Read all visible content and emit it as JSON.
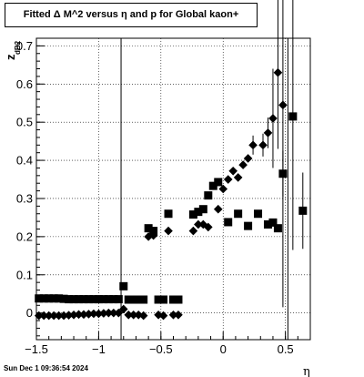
{
  "chart_data": {
    "type": "scatter",
    "title": "Fitted Δ M^2 versus η and p for Global kaon+",
    "xlabel": "η",
    "ylabel": "z",
    "ylabel_sub": "dB2",
    "xlim": [
      -1.5,
      0.7
    ],
    "ylim": [
      -0.07,
      0.72
    ],
    "x_ticks": [
      -1.5,
      -1,
      -0.5,
      0,
      0.5
    ],
    "x_tick_labels": [
      "−1.5",
      "−1",
      "−0.5",
      "0",
      "0.5"
    ],
    "y_ticks": [
      0,
      0.1,
      0.2,
      0.3,
      0.4,
      0.5,
      0.6,
      0.7
    ],
    "y_tick_labels": [
      "0",
      "0.1",
      "0.2",
      "0.3",
      "0.4",
      "0.5",
      "0.6",
      "0.7"
    ],
    "grid": true,
    "vertical_lines_x": [
      -0.82,
      0.52
    ],
    "series": [
      {
        "marker": "square",
        "color": "#000000",
        "points": [
          {
            "x": -1.48,
            "y": 0.038
          },
          {
            "x": -1.44,
            "y": 0.038
          },
          {
            "x": -1.4,
            "y": 0.038
          },
          {
            "x": -1.36,
            "y": 0.038
          },
          {
            "x": -1.32,
            "y": 0.038
          },
          {
            "x": -1.28,
            "y": 0.037
          },
          {
            "x": -1.24,
            "y": 0.036
          },
          {
            "x": -1.2,
            "y": 0.036
          },
          {
            "x": -1.16,
            "y": 0.036
          },
          {
            "x": -1.12,
            "y": 0.036
          },
          {
            "x": -1.08,
            "y": 0.036
          },
          {
            "x": -1.04,
            "y": 0.036
          },
          {
            "x": -1.0,
            "y": 0.036
          },
          {
            "x": -0.96,
            "y": 0.036
          },
          {
            "x": -0.92,
            "y": 0.036
          },
          {
            "x": -0.88,
            "y": 0.036
          },
          {
            "x": -0.84,
            "y": 0.036
          },
          {
            "x": -0.8,
            "y": 0.07
          },
          {
            "x": -0.76,
            "y": 0.035
          },
          {
            "x": -0.72,
            "y": 0.035
          },
          {
            "x": -0.68,
            "y": 0.035
          },
          {
            "x": -0.64,
            "y": 0.035
          },
          {
            "x": -0.6,
            "y": 0.222
          },
          {
            "x": -0.56,
            "y": 0.215
          },
          {
            "x": -0.52,
            "y": 0.035
          },
          {
            "x": -0.48,
            "y": 0.035
          },
          {
            "x": -0.44,
            "y": 0.26
          },
          {
            "x": -0.4,
            "y": 0.035
          },
          {
            "x": -0.36,
            "y": 0.035
          },
          {
            "x": -0.24,
            "y": 0.258
          },
          {
            "x": -0.2,
            "y": 0.265
          },
          {
            "x": -0.16,
            "y": 0.272
          },
          {
            "x": -0.12,
            "y": 0.308
          },
          {
            "x": -0.08,
            "y": 0.333
          },
          {
            "x": -0.04,
            "y": 0.343
          },
          {
            "x": 0.04,
            "y": 0.238
          },
          {
            "x": 0.12,
            "y": 0.26
          },
          {
            "x": 0.2,
            "y": 0.228
          },
          {
            "x": 0.28,
            "y": 0.26
          },
          {
            "x": 0.36,
            "y": 0.232
          },
          {
            "x": 0.4,
            "y": 0.237
          },
          {
            "x": 0.44,
            "y": 0.222
          },
          {
            "x": 0.48,
            "y": 0.365,
            "err": 0.06
          },
          {
            "x": 0.56,
            "y": 0.515,
            "err": 0.35
          },
          {
            "x": 0.64,
            "y": 0.268,
            "err": 0.1
          }
        ]
      },
      {
        "marker": "diamond",
        "color": "#000000",
        "points": [
          {
            "x": -1.48,
            "y": -0.007
          },
          {
            "x": -1.44,
            "y": -0.007
          },
          {
            "x": -1.4,
            "y": -0.007
          },
          {
            "x": -1.36,
            "y": -0.007
          },
          {
            "x": -1.32,
            "y": -0.007
          },
          {
            "x": -1.28,
            "y": -0.007
          },
          {
            "x": -1.24,
            "y": -0.006
          },
          {
            "x": -1.2,
            "y": -0.005
          },
          {
            "x": -1.16,
            "y": -0.004
          },
          {
            "x": -1.12,
            "y": -0.004
          },
          {
            "x": -1.08,
            "y": -0.003
          },
          {
            "x": -1.04,
            "y": -0.002
          },
          {
            "x": -1.0,
            "y": -0.002
          },
          {
            "x": -0.96,
            "y": -0.001
          },
          {
            "x": -0.92,
            "y": 0.0
          },
          {
            "x": -0.88,
            "y": 0.0
          },
          {
            "x": -0.84,
            "y": 0.0
          },
          {
            "x": -0.8,
            "y": 0.01
          },
          {
            "x": -0.76,
            "y": -0.005
          },
          {
            "x": -0.72,
            "y": -0.005
          },
          {
            "x": -0.68,
            "y": -0.005
          },
          {
            "x": -0.64,
            "y": -0.007
          },
          {
            "x": -0.6,
            "y": 0.2
          },
          {
            "x": -0.56,
            "y": 0.203
          },
          {
            "x": -0.52,
            "y": -0.005
          },
          {
            "x": -0.48,
            "y": -0.007
          },
          {
            "x": -0.44,
            "y": 0.215
          },
          {
            "x": -0.4,
            "y": -0.005
          },
          {
            "x": -0.36,
            "y": -0.005
          },
          {
            "x": -0.24,
            "y": 0.215
          },
          {
            "x": -0.2,
            "y": 0.232
          },
          {
            "x": -0.16,
            "y": 0.232
          },
          {
            "x": -0.12,
            "y": 0.225
          },
          {
            "x": -0.04,
            "y": 0.272
          },
          {
            "x": 0.0,
            "y": 0.325
          },
          {
            "x": 0.04,
            "y": 0.35
          },
          {
            "x": 0.08,
            "y": 0.372
          },
          {
            "x": 0.12,
            "y": 0.355
          },
          {
            "x": 0.16,
            "y": 0.388
          },
          {
            "x": 0.2,
            "y": 0.405
          },
          {
            "x": 0.24,
            "y": 0.44,
            "err": 0.025
          },
          {
            "x": 0.32,
            "y": 0.44,
            "err": 0.03
          },
          {
            "x": 0.36,
            "y": 0.472,
            "err": 0.04
          },
          {
            "x": 0.4,
            "y": 0.51,
            "err": 0.13
          },
          {
            "x": 0.44,
            "y": 0.63,
            "err": 0.2
          },
          {
            "x": 0.48,
            "y": 0.545,
            "err": 0.53
          }
        ]
      }
    ]
  },
  "footer": {
    "timestamp": "Sun Dec  1 09:36:54 2024"
  }
}
